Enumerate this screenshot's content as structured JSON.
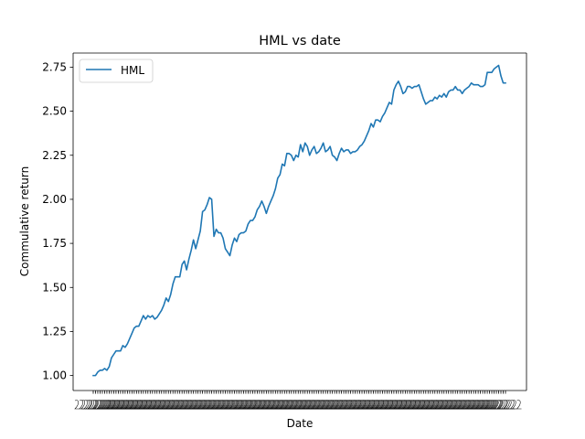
{
  "chart_data": {
    "type": "line",
    "title": "HML vs date",
    "xlabel": "Date",
    "ylabel": "Commulative return",
    "ylim": [
      0.915,
      2.83
    ],
    "yticks": [
      1.0,
      1.25,
      1.5,
      1.75,
      2.0,
      2.25,
      2.5,
      2.75
    ],
    "ytick_labels": [
      "1.00",
      "1.25",
      "1.50",
      "1.75",
      "2.00",
      "2.25",
      "2.50",
      "2.75"
    ],
    "legend_position": "top-left",
    "grid": false,
    "series": [
      {
        "name": "HML",
        "color": "#1f77b4",
        "values": [
          1.0,
          1.0,
          1.02,
          1.03,
          1.03,
          1.04,
          1.03,
          1.05,
          1.1,
          1.12,
          1.14,
          1.14,
          1.14,
          1.17,
          1.16,
          1.18,
          1.21,
          1.24,
          1.27,
          1.28,
          1.28,
          1.31,
          1.34,
          1.32,
          1.34,
          1.33,
          1.34,
          1.32,
          1.33,
          1.35,
          1.37,
          1.4,
          1.44,
          1.42,
          1.46,
          1.52,
          1.56,
          1.56,
          1.56,
          1.63,
          1.65,
          1.6,
          1.66,
          1.71,
          1.77,
          1.72,
          1.77,
          1.82,
          1.93,
          1.94,
          1.97,
          2.01,
          2.0,
          1.79,
          1.83,
          1.81,
          1.81,
          1.78,
          1.72,
          1.7,
          1.68,
          1.74,
          1.78,
          1.76,
          1.8,
          1.81,
          1.81,
          1.82,
          1.86,
          1.88,
          1.88,
          1.9,
          1.94,
          1.96,
          1.99,
          1.96,
          1.92,
          1.96,
          1.99,
          2.02,
          2.06,
          2.12,
          2.14,
          2.2,
          2.19,
          2.26,
          2.26,
          2.25,
          2.22,
          2.25,
          2.24,
          2.31,
          2.27,
          2.32,
          2.3,
          2.25,
          2.28,
          2.3,
          2.26,
          2.27,
          2.29,
          2.32,
          2.27,
          2.28,
          2.3,
          2.25,
          2.24,
          2.22,
          2.26,
          2.29,
          2.27,
          2.28,
          2.28,
          2.26,
          2.27,
          2.27,
          2.28,
          2.3,
          2.31,
          2.33,
          2.36,
          2.39,
          2.43,
          2.41,
          2.45,
          2.45,
          2.44,
          2.47,
          2.49,
          2.52,
          2.55,
          2.54,
          2.62,
          2.65,
          2.67,
          2.64,
          2.6,
          2.61,
          2.64,
          2.64,
          2.63,
          2.64,
          2.64,
          2.65,
          2.61,
          2.57,
          2.54,
          2.55,
          2.56,
          2.56,
          2.58,
          2.57,
          2.59,
          2.58,
          2.6,
          2.58,
          2.61,
          2.62,
          2.62,
          2.64,
          2.62,
          2.62,
          2.6,
          2.62,
          2.63,
          2.64,
          2.66,
          2.65,
          2.65,
          2.65,
          2.64,
          2.64,
          2.65,
          2.72,
          2.72,
          2.72,
          2.74,
          2.75,
          2.76,
          2.7,
          2.66,
          2.66
        ]
      }
    ]
  }
}
